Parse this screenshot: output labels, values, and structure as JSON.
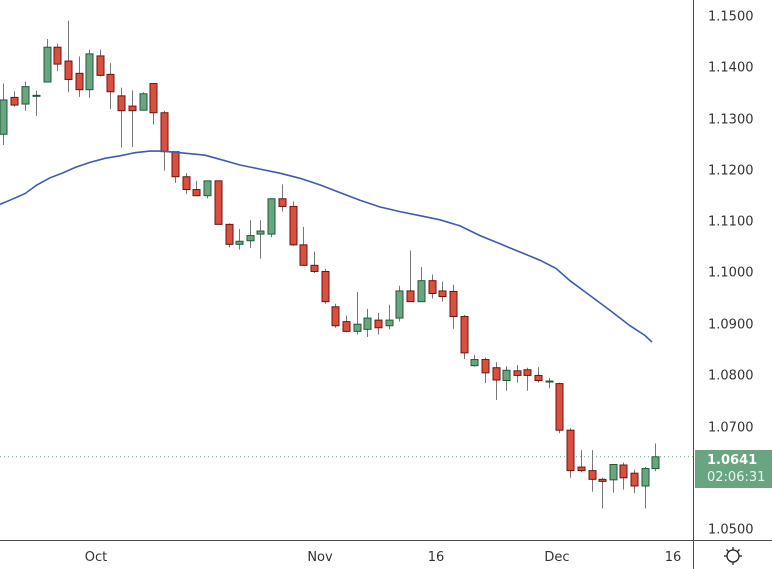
{
  "chart_data": {
    "type": "candlestick",
    "title": "",
    "xlabel": "",
    "ylabel": "",
    "ylim": [
      1.048,
      1.1534
    ],
    "grid": false,
    "y_ticks": [
      "1.1500",
      "1.1400",
      "1.1300",
      "1.1200",
      "1.1100",
      "1.1000",
      "1.0900",
      "1.0800",
      "1.0700",
      "1.0500"
    ],
    "x_ticks": [
      {
        "label": "Oct",
        "x": 96
      },
      {
        "label": "Nov",
        "x": 320
      },
      {
        "label": "16",
        "x": 436
      },
      {
        "label": "Dec",
        "x": 557
      },
      {
        "label": "16",
        "x": 673
      }
    ],
    "last_price": "1.0641",
    "countdown": "02:06:31",
    "up_color": "#6aa582",
    "down_color": "#d9503f",
    "ma_color": "#3d5bb1",
    "candles": [
      {
        "x": 0,
        "o": 1.1271,
        "h": 1.137,
        "l": 1.125,
        "c": 1.1338
      },
      {
        "x": 11,
        "o": 1.1343,
        "h": 1.1355,
        "l": 1.1325,
        "c": 1.1328
      },
      {
        "x": 22,
        "o": 1.133,
        "h": 1.1374,
        "l": 1.1317,
        "c": 1.1364
      },
      {
        "x": 33,
        "o": 1.1347,
        "h": 1.1356,
        "l": 1.1307,
        "c": 1.1347
      },
      {
        "x": 44,
        "o": 1.1373,
        "h": 1.1457,
        "l": 1.1373,
        "c": 1.1441
      },
      {
        "x": 54,
        "o": 1.1441,
        "h": 1.1448,
        "l": 1.1394,
        "c": 1.1408
      },
      {
        "x": 65,
        "o": 1.1414,
        "h": 1.1493,
        "l": 1.1353,
        "c": 1.1378
      },
      {
        "x": 76,
        "o": 1.139,
        "h": 1.1423,
        "l": 1.1344,
        "c": 1.1358
      },
      {
        "x": 86,
        "o": 1.1358,
        "h": 1.1436,
        "l": 1.1342,
        "c": 1.1428
      },
      {
        "x": 97,
        "o": 1.1424,
        "h": 1.1436,
        "l": 1.1384,
        "c": 1.1386
      },
      {
        "x": 107,
        "o": 1.1388,
        "h": 1.141,
        "l": 1.132,
        "c": 1.1354
      },
      {
        "x": 118,
        "o": 1.1346,
        "h": 1.1362,
        "l": 1.1245,
        "c": 1.1317
      },
      {
        "x": 129,
        "o": 1.1326,
        "h": 1.1357,
        "l": 1.1246,
        "c": 1.1317
      },
      {
        "x": 140,
        "o": 1.1318,
        "h": 1.1353,
        "l": 1.132,
        "c": 1.135
      },
      {
        "x": 150,
        "o": 1.137,
        "h": 1.137,
        "l": 1.129,
        "c": 1.1313
      },
      {
        "x": 161,
        "o": 1.1313,
        "h": 1.1317,
        "l": 1.12,
        "c": 1.1237
      },
      {
        "x": 172,
        "o": 1.1237,
        "h": 1.1237,
        "l": 1.1176,
        "c": 1.1188
      },
      {
        "x": 183,
        "o": 1.1188,
        "h": 1.1195,
        "l": 1.1154,
        "c": 1.1163
      },
      {
        "x": 193,
        "o": 1.1163,
        "h": 1.118,
        "l": 1.115,
        "c": 1.1151
      },
      {
        "x": 204,
        "o": 1.1151,
        "h": 1.118,
        "l": 1.1146,
        "c": 1.118
      },
      {
        "x": 215,
        "o": 1.118,
        "h": 1.118,
        "l": 1.1095,
        "c": 1.1095
      },
      {
        "x": 226,
        "o": 1.1095,
        "h": 1.1097,
        "l": 1.105,
        "c": 1.1056
      },
      {
        "x": 236,
        "o": 1.1056,
        "h": 1.1086,
        "l": 1.1046,
        "c": 1.1062
      },
      {
        "x": 247,
        "o": 1.1063,
        "h": 1.1103,
        "l": 1.1049,
        "c": 1.1073
      },
      {
        "x": 257,
        "o": 1.1076,
        "h": 1.1103,
        "l": 1.1028,
        "c": 1.1082
      },
      {
        "x": 268,
        "o": 1.1076,
        "h": 1.1145,
        "l": 1.107,
        "c": 1.1145
      },
      {
        "x": 279,
        "o": 1.1145,
        "h": 1.1173,
        "l": 1.112,
        "c": 1.113
      },
      {
        "x": 290,
        "o": 1.113,
        "h": 1.114,
        "l": 1.1053,
        "c": 1.1055
      },
      {
        "x": 300,
        "o": 1.1055,
        "h": 1.109,
        "l": 1.105,
        "c": 1.1015
      },
      {
        "x": 311,
        "o": 1.1015,
        "h": 1.1042,
        "l": 1.1,
        "c": 1.1003
      },
      {
        "x": 322,
        "o": 1.1003,
        "h": 1.1008,
        "l": 1.094,
        "c": 1.0944
      },
      {
        "x": 332,
        "o": 1.0934,
        "h": 1.094,
        "l": 1.0893,
        "c": 1.0897
      },
      {
        "x": 343,
        "o": 1.0905,
        "h": 1.0917,
        "l": 1.0884,
        "c": 1.0886
      },
      {
        "x": 354,
        "o": 1.0886,
        "h": 1.0963,
        "l": 1.088,
        "c": 1.09
      },
      {
        "x": 364,
        "o": 1.089,
        "h": 1.093,
        "l": 1.0875,
        "c": 1.0912
      },
      {
        "x": 375,
        "o": 1.0908,
        "h": 1.0922,
        "l": 1.088,
        "c": 1.0893
      },
      {
        "x": 386,
        "o": 1.0897,
        "h": 1.0938,
        "l": 1.089,
        "c": 1.0908
      },
      {
        "x": 396,
        "o": 1.0912,
        "h": 1.0975,
        "l": 1.0905,
        "c": 1.0965
      },
      {
        "x": 407,
        "o": 1.0965,
        "h": 1.1044,
        "l": 1.0945,
        "c": 1.0944
      },
      {
        "x": 418,
        "o": 1.0944,
        "h": 1.1012,
        "l": 1.0945,
        "c": 1.0985
      },
      {
        "x": 429,
        "o": 1.0985,
        "h": 1.0997,
        "l": 1.095,
        "c": 1.096
      },
      {
        "x": 439,
        "o": 1.0965,
        "h": 1.0983,
        "l": 1.0944,
        "c": 1.0954
      },
      {
        "x": 450,
        "o": 1.0964,
        "h": 1.0977,
        "l": 1.0891,
        "c": 1.0915
      },
      {
        "x": 461,
        "o": 1.0915,
        "h": 1.0918,
        "l": 1.0832,
        "c": 1.0844
      },
      {
        "x": 471,
        "o": 1.0819,
        "h": 1.084,
        "l": 1.0817,
        "c": 1.0831
      },
      {
        "x": 482,
        "o": 1.0831,
        "h": 1.0835,
        "l": 1.0785,
        "c": 1.0805
      },
      {
        "x": 493,
        "o": 1.0815,
        "h": 1.0826,
        "l": 1.0752,
        "c": 1.0791
      },
      {
        "x": 503,
        "o": 1.079,
        "h": 1.0818,
        "l": 1.077,
        "c": 1.081
      },
      {
        "x": 514,
        "o": 1.0809,
        "h": 1.082,
        "l": 1.0786,
        "c": 1.08
      },
      {
        "x": 524,
        "o": 1.0811,
        "h": 1.0815,
        "l": 1.077,
        "c": 1.08
      },
      {
        "x": 535,
        "o": 1.08,
        "h": 1.0816,
        "l": 1.0786,
        "c": 1.079
      },
      {
        "x": 546,
        "o": 1.0789,
        "h": 1.0795,
        "l": 1.0775,
        "c": 1.0789
      },
      {
        "x": 556,
        "o": 1.0784,
        "h": 1.0786,
        "l": 1.0687,
        "c": 1.0693
      },
      {
        "x": 567,
        "o": 1.0693,
        "h": 1.0697,
        "l": 1.06,
        "c": 1.0614
      },
      {
        "x": 578,
        "o": 1.0621,
        "h": 1.0654,
        "l": 1.0611,
        "c": 1.0614
      },
      {
        "x": 589,
        "o": 1.0614,
        "h": 1.0654,
        "l": 1.0573,
        "c": 1.0597
      },
      {
        "x": 599,
        "o": 1.0597,
        "h": 1.06,
        "l": 1.054,
        "c": 1.0593
      },
      {
        "x": 610,
        "o": 1.0596,
        "h": 1.0626,
        "l": 1.0571,
        "c": 1.0626
      },
      {
        "x": 620,
        "o": 1.0625,
        "h": 1.063,
        "l": 1.0577,
        "c": 1.06
      },
      {
        "x": 631,
        "o": 1.0609,
        "h": 1.0616,
        "l": 1.057,
        "c": 1.0584
      },
      {
        "x": 642,
        "o": 1.0584,
        "h": 1.0621,
        "l": 1.054,
        "c": 1.0618
      },
      {
        "x": 652,
        "o": 1.0618,
        "h": 1.0667,
        "l": 1.0613,
        "c": 1.0641
      }
    ],
    "moving_average": [
      [
        0,
        1.1134
      ],
      [
        12,
        1.1144
      ],
      [
        25,
        1.1155
      ],
      [
        37,
        1.1172
      ],
      [
        50,
        1.1186
      ],
      [
        62,
        1.1195
      ],
      [
        75,
        1.1206
      ],
      [
        90,
        1.1216
      ],
      [
        105,
        1.1224
      ],
      [
        120,
        1.1229
      ],
      [
        135,
        1.1235
      ],
      [
        150,
        1.1238
      ],
      [
        160,
        1.1238
      ],
      [
        175,
        1.1236
      ],
      [
        190,
        1.1233
      ],
      [
        205,
        1.123
      ],
      [
        220,
        1.1222
      ],
      [
        240,
        1.1211
      ],
      [
        260,
        1.1203
      ],
      [
        280,
        1.1195
      ],
      [
        300,
        1.1185
      ],
      [
        320,
        1.1172
      ],
      [
        340,
        1.1157
      ],
      [
        360,
        1.1142
      ],
      [
        380,
        1.1129
      ],
      [
        400,
        1.112
      ],
      [
        420,
        1.1112
      ],
      [
        440,
        1.1104
      ],
      [
        460,
        1.1092
      ],
      [
        480,
        1.1073
      ],
      [
        500,
        1.1057
      ],
      [
        520,
        1.1041
      ],
      [
        540,
        1.1025
      ],
      [
        556,
        1.1009
      ],
      [
        570,
        1.0985
      ],
      [
        590,
        1.0956
      ],
      [
        610,
        1.0927
      ],
      [
        630,
        1.0897
      ],
      [
        645,
        1.0878
      ],
      [
        652,
        1.0865
      ]
    ]
  },
  "price_axis": {
    "ticks": [
      {
        "label": "1.1500",
        "value": 1.15
      },
      {
        "label": "1.1400",
        "value": 1.14
      },
      {
        "label": "1.1300",
        "value": 1.13
      },
      {
        "label": "1.1200",
        "value": 1.12
      },
      {
        "label": "1.1100",
        "value": 1.11
      },
      {
        "label": "1.1000",
        "value": 1.1
      },
      {
        "label": "1.0900",
        "value": 1.09
      },
      {
        "label": "1.0800",
        "value": 1.08
      },
      {
        "label": "1.0700",
        "value": 1.07
      },
      {
        "label": "1.0500",
        "value": 1.05
      }
    ],
    "last_price": "1.0641",
    "countdown": "02:06:31"
  },
  "time_axis": {
    "labels": [
      "Oct",
      "Nov",
      "16",
      "Dec",
      "16"
    ]
  },
  "corner": {
    "icon": "settings-gear-icon"
  }
}
